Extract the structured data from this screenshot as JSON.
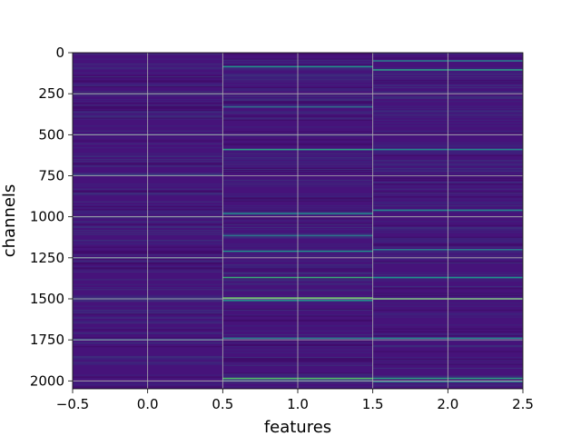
{
  "chart_data": {
    "type": "heatmap",
    "title": "",
    "xlabel": "features",
    "ylabel": "channels",
    "xlim": [
      -0.5,
      2.5
    ],
    "ylim": [
      2048,
      0
    ],
    "y_inverted": true,
    "xticks": [
      -0.5,
      0.0,
      0.5,
      1.0,
      1.5,
      2.0,
      2.5
    ],
    "xtick_labels": [
      "−0.5",
      "0.0",
      "0.5",
      "1.0",
      "1.5",
      "2.0",
      "2.5"
    ],
    "yticks": [
      0,
      250,
      500,
      750,
      1000,
      1250,
      1500,
      1750,
      2000
    ],
    "ytick_labels": [
      "0",
      "250",
      "500",
      "750",
      "1000",
      "1250",
      "1500",
      "1750",
      "2000"
    ],
    "grid": true,
    "colormap": "viridis",
    "background_color": "#46137a",
    "columns": [
      0,
      1,
      2
    ],
    "num_channels": 2048,
    "highlights": [
      {
        "column": 0,
        "channel": 250,
        "level": 0.22
      },
      {
        "column": 0,
        "channel": 500,
        "level": 0.2
      },
      {
        "column": 0,
        "channel": 745,
        "level": 0.22
      },
      {
        "column": 0,
        "channel": 1000,
        "level": 0.25
      },
      {
        "column": 0,
        "channel": 1250,
        "level": 0.25
      },
      {
        "column": 0,
        "channel": 1500,
        "level": 0.22
      },
      {
        "column": 0,
        "channel": 1750,
        "level": 0.28
      },
      {
        "column": 1,
        "channel": 85,
        "level": 0.5
      },
      {
        "column": 1,
        "channel": 330,
        "level": 0.35
      },
      {
        "column": 1,
        "channel": 590,
        "level": 0.55
      },
      {
        "column": 1,
        "channel": 980,
        "level": 0.45
      },
      {
        "column": 1,
        "channel": 1115,
        "level": 0.38
      },
      {
        "column": 1,
        "channel": 1210,
        "level": 0.5
      },
      {
        "column": 1,
        "channel": 1370,
        "level": 0.6
      },
      {
        "column": 1,
        "channel": 1495,
        "level": 0.75
      },
      {
        "column": 1,
        "channel": 1510,
        "level": 0.5
      },
      {
        "column": 1,
        "channel": 1740,
        "level": 0.4
      },
      {
        "column": 1,
        "channel": 1985,
        "level": 0.7
      },
      {
        "column": 1,
        "channel": 2000,
        "level": 0.45
      },
      {
        "column": 2,
        "channel": 50,
        "level": 0.4
      },
      {
        "column": 2,
        "channel": 105,
        "level": 0.55
      },
      {
        "column": 2,
        "channel": 590,
        "level": 0.45
      },
      {
        "column": 2,
        "channel": 960,
        "level": 0.45
      },
      {
        "column": 2,
        "channel": 1200,
        "level": 0.4
      },
      {
        "column": 2,
        "channel": 1370,
        "level": 0.5
      },
      {
        "column": 2,
        "channel": 1500,
        "level": 0.75
      },
      {
        "column": 2,
        "channel": 1740,
        "level": 0.45
      },
      {
        "column": 2,
        "channel": 1985,
        "level": 0.55
      },
      {
        "column": 2,
        "channel": 2005,
        "level": 0.4
      }
    ]
  }
}
